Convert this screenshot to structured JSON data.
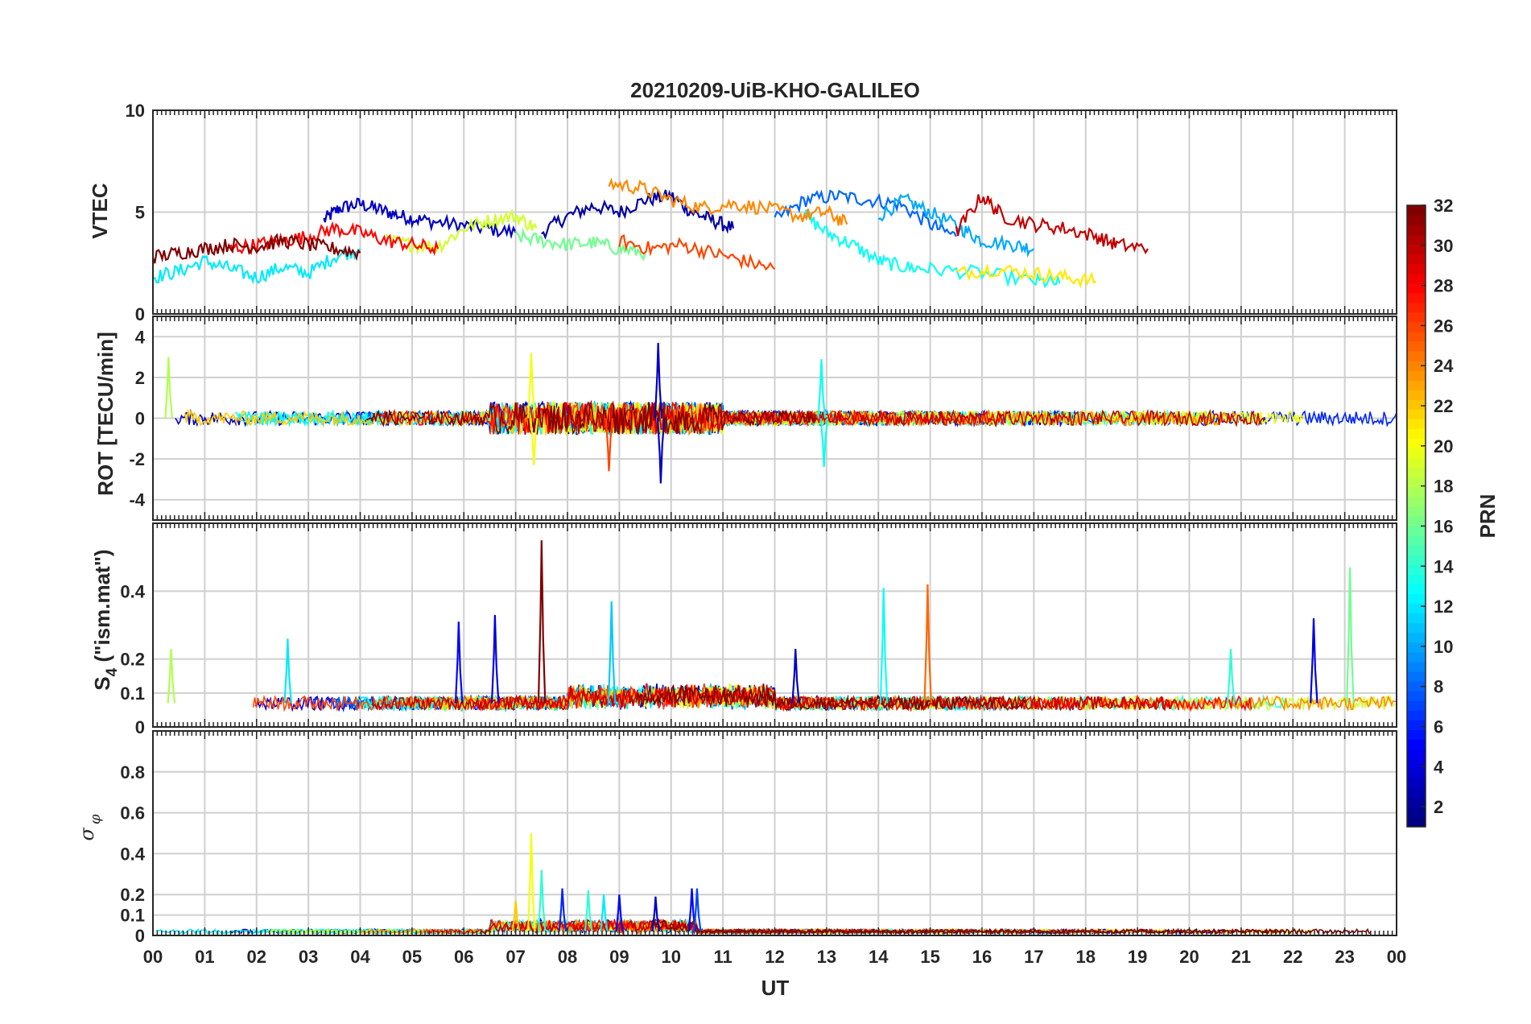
{
  "figure_title": "20210209-UiB-KHO-GALILEO",
  "chart_data": [
    {
      "type": "line",
      "panel": "VTEC",
      "ylabel": "VTEC",
      "ylim": [
        0,
        10
      ],
      "yticks": [
        0,
        5,
        10
      ],
      "yticklabels": [
        "0",
        "5",
        "10"
      ],
      "xlim": [
        0,
        24
      ],
      "grid": true,
      "series": [
        {
          "prn": 3,
          "x": [
            3.3,
            3.6,
            4.0,
            4.4,
            4.8,
            5.2,
            5.8,
            6.4,
            7.0
          ],
          "y": [
            4.6,
            5.2,
            5.4,
            5.1,
            4.8,
            4.6,
            4.4,
            4.2,
            4.0
          ]
        },
        {
          "prn": 2,
          "x": [
            7.5,
            8.0,
            8.5,
            9.0,
            9.5,
            10.0,
            10.4,
            10.8,
            11.2
          ],
          "y": [
            4.0,
            4.8,
            5.3,
            5.0,
            5.6,
            5.8,
            5.0,
            4.6,
            4.2
          ]
        },
        {
          "prn": 8,
          "x": [
            12.0,
            12.6,
            13.2,
            13.8,
            14.4,
            15.0,
            15.5
          ],
          "y": [
            4.6,
            5.6,
            5.8,
            5.6,
            5.4,
            4.4,
            3.8
          ]
        },
        {
          "prn": 10,
          "x": [
            14.0,
            14.5,
            15.0,
            15.6,
            16.0,
            16.6,
            17.0
          ],
          "y": [
            4.8,
            5.6,
            5.0,
            4.2,
            3.6,
            3.4,
            3.2
          ]
        },
        {
          "prn": 12,
          "x": [
            0.0,
            0.5,
            1.0,
            1.5,
            2.0,
            2.5,
            3.0,
            3.5,
            4.0
          ],
          "y": [
            1.8,
            2.1,
            2.6,
            2.2,
            1.8,
            2.3,
            2.0,
            2.8,
            3.2
          ]
        },
        {
          "prn": 13,
          "x": [
            12.5,
            13.0,
            13.5,
            14.0,
            14.5,
            15.0,
            16.0,
            17.0,
            17.5
          ],
          "y": [
            5.0,
            4.0,
            3.4,
            2.6,
            2.3,
            2.2,
            2.0,
            1.6,
            1.5
          ]
        },
        {
          "prn": 16,
          "x": [
            7.0,
            7.5,
            8.0,
            8.5,
            9.0,
            9.5
          ],
          "y": [
            3.8,
            3.6,
            3.4,
            3.5,
            3.2,
            3.0
          ]
        },
        {
          "prn": 19,
          "x": [
            4.5,
            5.0,
            5.5,
            6.0,
            6.5,
            7.0,
            7.4
          ],
          "y": [
            3.6,
            3.4,
            3.3,
            4.2,
            4.6,
            4.8,
            4.2
          ]
        },
        {
          "prn": 21,
          "x": [
            15.5,
            16.2,
            17.0,
            17.6,
            18.2
          ],
          "y": [
            2.0,
            2.2,
            2.0,
            1.8,
            1.6
          ]
        },
        {
          "prn": 24,
          "x": [
            8.8,
            9.4,
            10.0,
            10.6,
            11.2,
            11.8,
            12.5,
            13.0,
            13.4
          ],
          "y": [
            6.4,
            6.2,
            5.6,
            5.2,
            5.4,
            5.2,
            4.8,
            5.0,
            4.4
          ]
        },
        {
          "prn": 26,
          "x": [
            9.0,
            9.6,
            10.2,
            10.8,
            11.4,
            12.0
          ],
          "y": [
            3.6,
            3.2,
            3.4,
            3.0,
            2.6,
            2.2
          ]
        },
        {
          "prn": 28,
          "x": [
            1.5,
            2.0,
            2.5,
            3.0,
            3.5,
            4.0,
            4.5,
            5.0,
            5.5
          ],
          "y": [
            3.2,
            3.4,
            3.6,
            3.8,
            4.2,
            4.0,
            3.6,
            3.4,
            3.2
          ]
        },
        {
          "prn": 30,
          "x": [
            15.5,
            16.0,
            16.4,
            17.0,
            17.6,
            18.2,
            18.6,
            19.2
          ],
          "y": [
            4.0,
            5.8,
            4.8,
            4.4,
            4.2,
            3.8,
            3.4,
            3.2
          ]
        },
        {
          "prn": 32,
          "x": [
            0.0,
            0.5,
            1.0,
            1.5,
            2.0,
            2.5,
            3.0,
            3.5,
            4.0
          ],
          "y": [
            2.8,
            3.0,
            3.2,
            3.4,
            3.3,
            3.6,
            3.4,
            3.2,
            3.0
          ]
        }
      ]
    },
    {
      "type": "line",
      "panel": "ROT",
      "ylabel": "ROT [TECU/min]",
      "ylim": [
        -5,
        5
      ],
      "yticks": [
        -4,
        -2,
        0,
        2,
        4
      ],
      "yticklabels": [
        "-4",
        "-2",
        "0",
        "2",
        "4"
      ],
      "xlim": [
        0,
        24
      ],
      "grid": true,
      "note_spikes": [
        {
          "prn": 18,
          "x": 0.3,
          "y": 3.0
        },
        {
          "prn": 20,
          "x": 7.3,
          "y": 3.2
        },
        {
          "prn": 20,
          "x": 7.35,
          "y": -2.3
        },
        {
          "prn": 3,
          "x": 9.75,
          "y": 3.7
        },
        {
          "prn": 3,
          "x": 9.8,
          "y": -3.2
        },
        {
          "prn": 13,
          "x": 12.9,
          "y": 2.9
        },
        {
          "prn": 13,
          "x": 12.95,
          "y": -2.4
        },
        {
          "prn": 26,
          "x": 8.8,
          "y": -2.6
        }
      ]
    },
    {
      "type": "line",
      "panel": "S4",
      "ylabel": "S4 (\"ism.mat\")",
      "ylim": [
        0,
        0.6
      ],
      "yticks": [
        0,
        0.1,
        0.2,
        0.4
      ],
      "yticklabels": [
        "0",
        "0.1",
        "0.2",
        "0.4"
      ],
      "xlim": [
        0,
        24
      ],
      "grid": true,
      "note_spikes": [
        {
          "prn": 18,
          "x": 0.35,
          "y": 0.23
        },
        {
          "prn": 12,
          "x": 2.6,
          "y": 0.26
        },
        {
          "prn": 5,
          "x": 5.9,
          "y": 0.31
        },
        {
          "prn": 4,
          "x": 6.6,
          "y": 0.33
        },
        {
          "prn": 32,
          "x": 7.5,
          "y": 0.55
        },
        {
          "prn": 11,
          "x": 8.85,
          "y": 0.37
        },
        {
          "prn": 3,
          "x": 12.4,
          "y": 0.23
        },
        {
          "prn": 13,
          "x": 14.1,
          "y": 0.41
        },
        {
          "prn": 25,
          "x": 14.95,
          "y": 0.42
        },
        {
          "prn": 14,
          "x": 20.8,
          "y": 0.23
        },
        {
          "prn": 4,
          "x": 22.4,
          "y": 0.32
        },
        {
          "prn": 16,
          "x": 23.1,
          "y": 0.47
        }
      ]
    },
    {
      "type": "line",
      "panel": "sigma_phi",
      "ylabel": "σ φ",
      "ylim": [
        0,
        1
      ],
      "yticks": [
        0,
        0.1,
        0.2,
        0.4,
        0.6,
        0.8
      ],
      "yticklabels": [
        "0",
        "0.1",
        "0.2",
        "0.4",
        "0.6",
        "0.8"
      ],
      "xlim": [
        0,
        24
      ],
      "grid": true,
      "note_spikes": [
        {
          "prn": 20,
          "x": 7.3,
          "y": 0.5
        },
        {
          "prn": 14,
          "x": 7.5,
          "y": 0.32
        },
        {
          "prn": 22,
          "x": 7.0,
          "y": 0.17
        },
        {
          "prn": 6,
          "x": 7.9,
          "y": 0.23
        },
        {
          "prn": 14,
          "x": 8.4,
          "y": 0.22
        },
        {
          "prn": 12,
          "x": 8.7,
          "y": 0.2
        },
        {
          "prn": 5,
          "x": 9.0,
          "y": 0.2
        },
        {
          "prn": 3,
          "x": 9.7,
          "y": 0.19
        },
        {
          "prn": 5,
          "x": 10.4,
          "y": 0.23
        },
        {
          "prn": 7,
          "x": 10.5,
          "y": 0.23
        }
      ]
    }
  ],
  "x_axis": {
    "label": "UT",
    "ticklabels": [
      "00",
      "01",
      "02",
      "03",
      "04",
      "05",
      "06",
      "07",
      "08",
      "09",
      "10",
      "11",
      "12",
      "13",
      "14",
      "15",
      "16",
      "17",
      "18",
      "19",
      "20",
      "21",
      "22",
      "23",
      "00"
    ]
  },
  "colorbar": {
    "label": "PRN",
    "colormap": "jet",
    "range": [
      1,
      32
    ],
    "ticks": [
      2,
      4,
      6,
      8,
      10,
      12,
      14,
      16,
      18,
      20,
      22,
      24,
      26,
      28,
      30,
      32
    ],
    "ticklabels": [
      "2",
      "4",
      "6",
      "8",
      "10",
      "12",
      "14",
      "16",
      "18",
      "20",
      "22",
      "24",
      "26",
      "28",
      "30",
      "32"
    ]
  },
  "colors": {
    "grid": "#cfcfcf",
    "axis": "#262626",
    "background": "#ffffff"
  }
}
